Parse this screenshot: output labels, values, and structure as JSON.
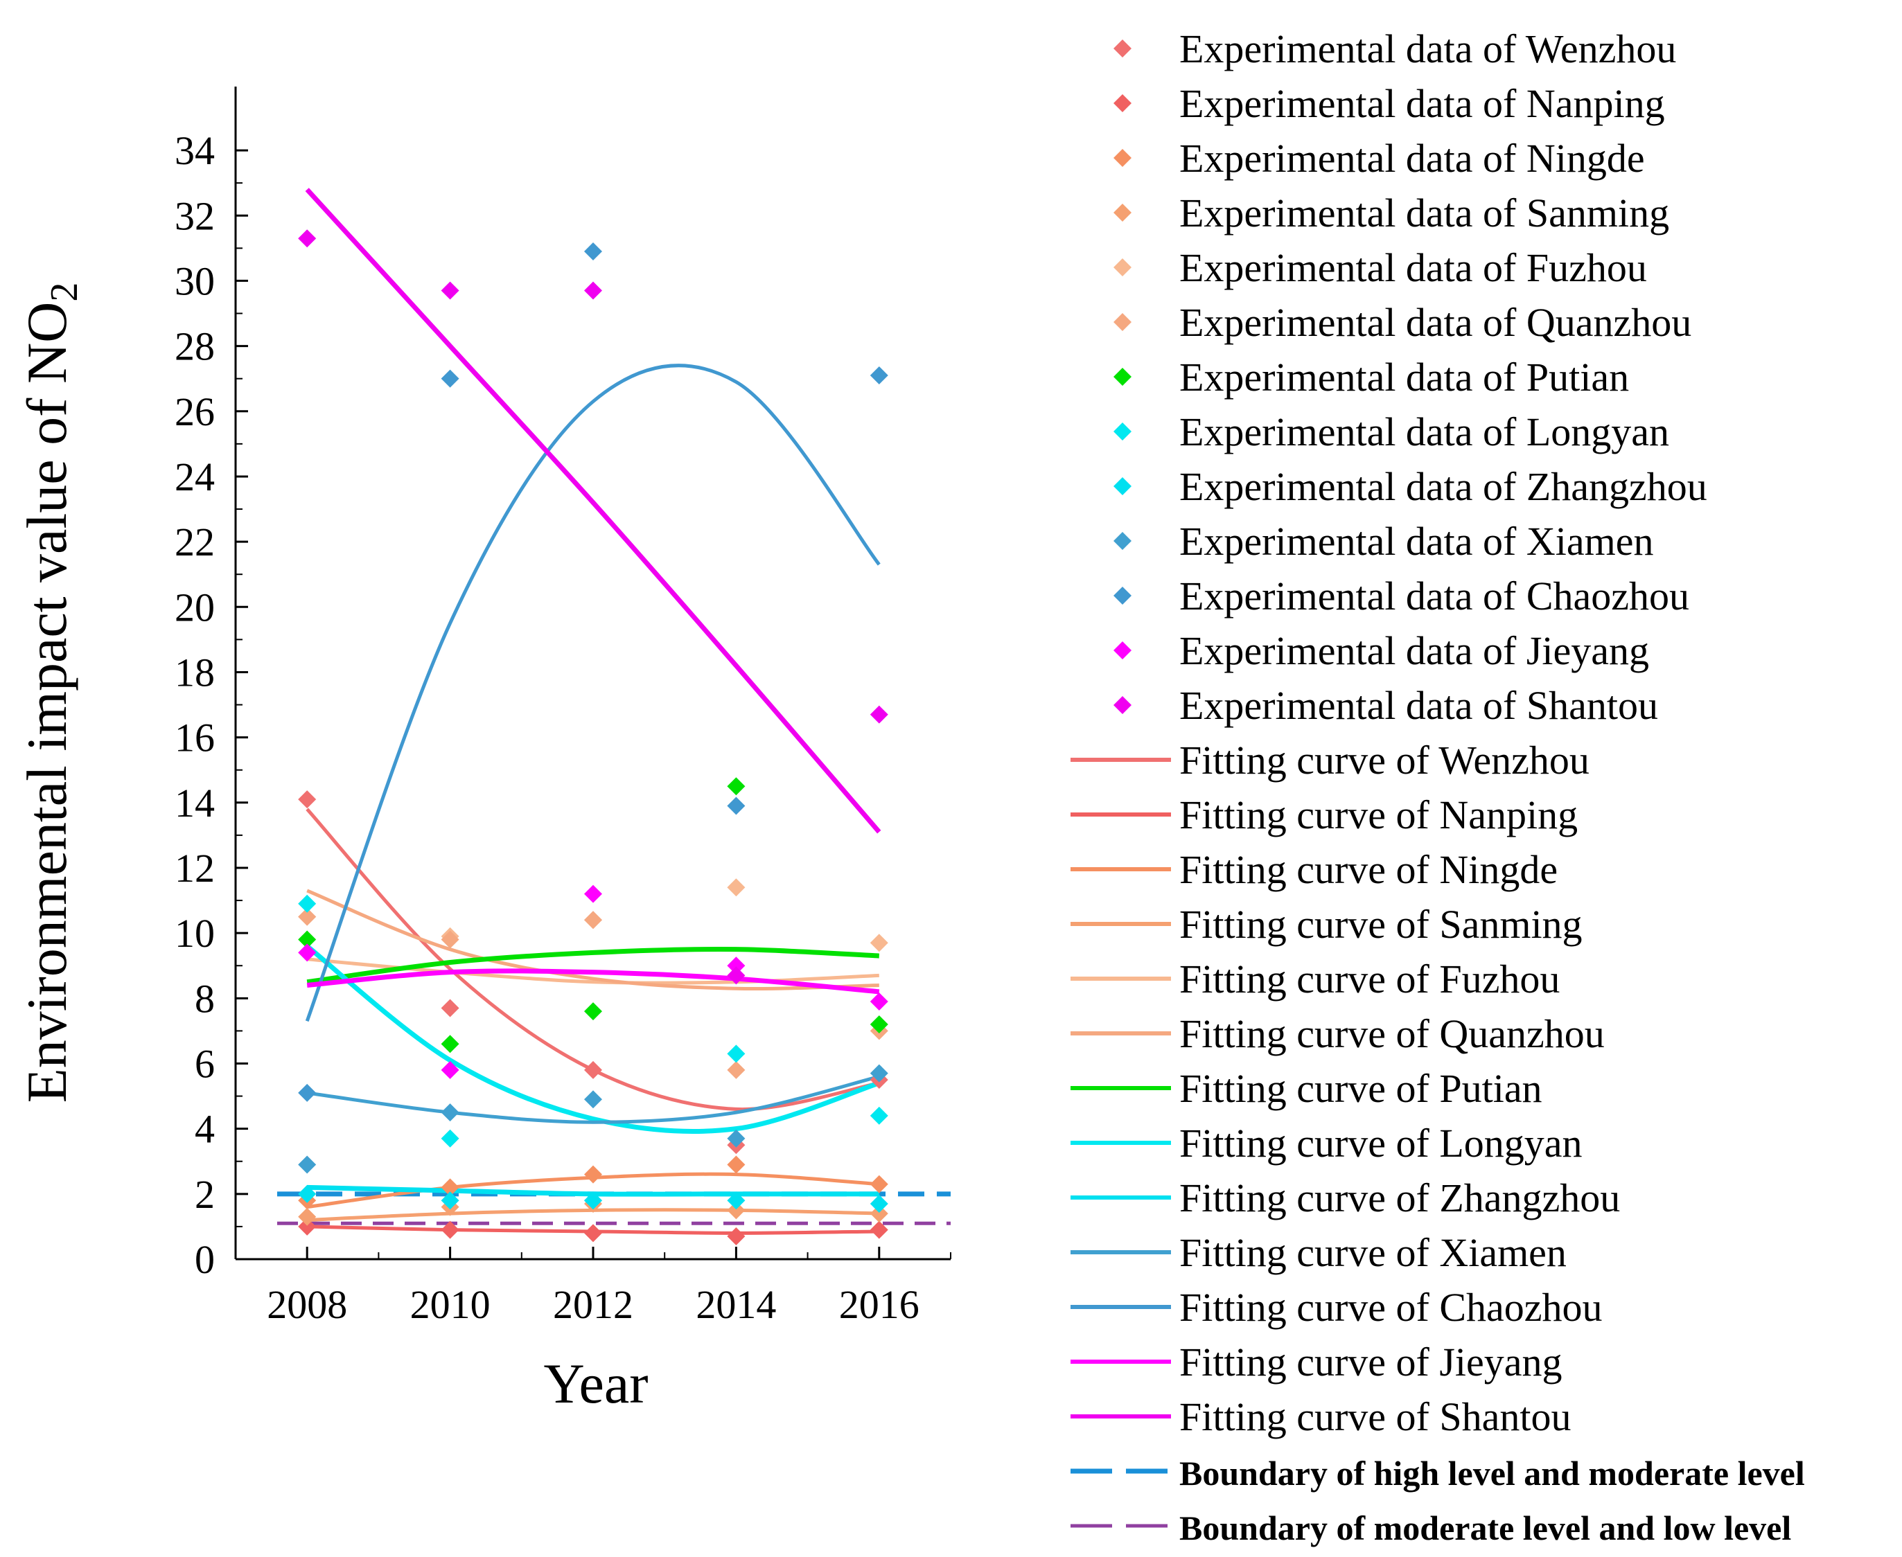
{
  "chart_data": {
    "type": "scatter",
    "title": "",
    "xlabel": "Year",
    "ylabel": "Environmental impact value of NO",
    "ylabel_subscript": "2",
    "xlim": [
      2007,
      2017
    ],
    "ylim": [
      0,
      35
    ],
    "x_ticks": [
      2008,
      2010,
      2012,
      2014,
      2016
    ],
    "y_ticks": [
      0,
      2,
      4,
      6,
      8,
      10,
      12,
      14,
      16,
      18,
      20,
      22,
      24,
      26,
      28,
      30,
      32,
      34
    ],
    "grid": false,
    "legend_position": "right",
    "x": [
      2008,
      2010,
      2012,
      2014,
      2016
    ],
    "series": [
      {
        "name": "Experimental data of Wenzhou",
        "color": "#f07070",
        "values": [
          14.1,
          7.7,
          5.8,
          3.5,
          5.5
        ]
      },
      {
        "name": "Experimental data of Nanping",
        "color": "#f06060",
        "values": [
          1.0,
          0.9,
          0.8,
          0.7,
          0.9
        ]
      },
      {
        "name": "Experimental data of Ningde",
        "color": "#f59060",
        "values": [
          1.8,
          2.2,
          2.6,
          2.9,
          2.3
        ]
      },
      {
        "name": "Experimental data of Sanming",
        "color": "#f5a070",
        "values": [
          1.3,
          1.6,
          1.7,
          1.5,
          1.4
        ]
      },
      {
        "name": "Experimental data of Fuzhou",
        "color": "#f8b890",
        "values": [
          10.5,
          9.9,
          10.4,
          11.4,
          9.7
        ]
      },
      {
        "name": "Experimental data of Quanzhou",
        "color": "#f5a880",
        "values": [
          10.5,
          9.8,
          10.4,
          5.8,
          7.0
        ]
      },
      {
        "name": "Experimental data of Putian",
        "color": "#00e000",
        "values": [
          9.8,
          6.6,
          7.6,
          14.5,
          7.2
        ]
      },
      {
        "name": "Experimental data of Longyan",
        "color": "#00e8f0",
        "values": [
          10.9,
          3.7,
          1.8,
          6.3,
          4.4
        ]
      },
      {
        "name": "Experimental data of Zhangzhou",
        "color": "#00e0f0",
        "values": [
          2.0,
          1.8,
          1.8,
          1.8,
          1.7
        ]
      },
      {
        "name": "Experimental data of Xiamen",
        "color": "#40a0d0",
        "values": [
          2.9,
          4.5,
          4.9,
          3.7,
          5.7
        ]
      },
      {
        "name": "Experimental data of Chaozhou",
        "color": "#4098d0",
        "values": [
          5.1,
          27.0,
          30.9,
          13.9,
          27.1
        ]
      },
      {
        "name": "Experimental data of Jieyang",
        "color": "#ff00ff",
        "values": [
          9.4,
          5.8,
          11.2,
          9.0,
          7.9
        ]
      },
      {
        "name": "Experimental data of Shantou",
        "color": "#f000f0",
        "values": [
          31.3,
          29.7,
          29.7,
          8.7,
          16.7
        ]
      }
    ],
    "fitting_curves": [
      {
        "name": "Fitting curve of Wenzhou",
        "color": "#f07070",
        "values": [
          13.8,
          8.9,
          5.8,
          4.6,
          5.4
        ]
      },
      {
        "name": "Fitting curve of Nanping",
        "color": "#f06060",
        "values": [
          1.0,
          0.9,
          0.85,
          0.8,
          0.85
        ]
      },
      {
        "name": "Fitting curve of Ningde",
        "color": "#f59060",
        "values": [
          1.6,
          2.2,
          2.5,
          2.6,
          2.3
        ]
      },
      {
        "name": "Fitting curve of Sanming",
        "color": "#f5a070",
        "values": [
          1.2,
          1.4,
          1.5,
          1.5,
          1.4
        ]
      },
      {
        "name": "Fitting curve of Fuzhou",
        "color": "#f8b890",
        "values": [
          9.2,
          8.8,
          8.5,
          8.5,
          8.7
        ]
      },
      {
        "name": "Fitting curve of Quanzhou",
        "color": "#f5a880",
        "values": [
          11.3,
          9.5,
          8.6,
          8.3,
          8.4
        ]
      },
      {
        "name": "Fitting curve of Putian",
        "color": "#00e000",
        "values": [
          8.5,
          9.1,
          9.4,
          9.5,
          9.3
        ]
      },
      {
        "name": "Fitting curve of Longyan",
        "color": "#00e8f0",
        "values": [
          9.6,
          6.1,
          4.3,
          4.0,
          5.4
        ]
      },
      {
        "name": "Fitting curve of Zhangzhou",
        "color": "#00e0f0",
        "values": [
          2.2,
          2.1,
          2.0,
          2.0,
          2.0
        ]
      },
      {
        "name": "Fitting curve of Xiamen",
        "color": "#40a0d0",
        "values": [
          5.1,
          4.5,
          4.2,
          4.5,
          5.6
        ]
      },
      {
        "name": "Fitting curve of Chaozhou",
        "color": "#4098d0",
        "values": [
          7.3,
          19.5,
          26.3,
          26.9,
          21.3
        ]
      },
      {
        "name": "Fitting curve of Jieyang",
        "color": "#ff00ff",
        "values": [
          8.4,
          8.8,
          8.8,
          8.6,
          8.2
        ]
      },
      {
        "name": "Fitting curve of Shantou",
        "color": "#f000f0",
        "values": [
          32.8,
          28.0,
          23.2,
          18.2,
          13.1
        ]
      }
    ],
    "boundaries": [
      {
        "name": "Boundary of high level and moderate level",
        "color": "#1a90d8",
        "value": 2.0
      },
      {
        "name": "Boundary of moderate level and low level",
        "color": "#9040a0",
        "value": 1.1
      }
    ]
  }
}
